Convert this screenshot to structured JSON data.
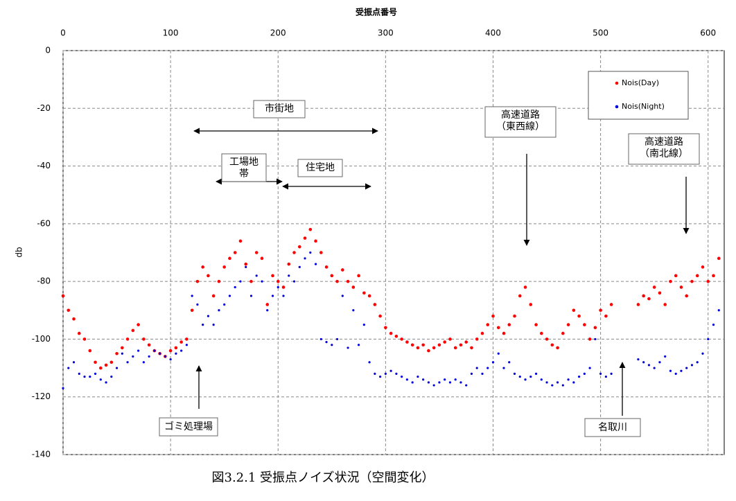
{
  "chart_data": {
    "type": "scatter",
    "x_label": "受振点番号",
    "y_label": "db",
    "caption": "図3.2.1 受振点ノイズ状況（空間変化）",
    "xlim": [
      0,
      615
    ],
    "ylim": [
      -140,
      0
    ],
    "xticks": [
      0,
      100,
      200,
      300,
      400,
      500,
      600
    ],
    "yticks": [
      0,
      -20,
      -40,
      -60,
      -80,
      -100,
      -120,
      -140
    ],
    "grid": true,
    "legend": "upper right",
    "series": [
      {
        "name": "Nois(Day)",
        "color": "#ff0000",
        "x": [
          0,
          5,
          10,
          15,
          20,
          25,
          30,
          35,
          40,
          45,
          50,
          55,
          60,
          65,
          70,
          75,
          80,
          85,
          90,
          95,
          100,
          105,
          110,
          115,
          120,
          125,
          130,
          135,
          140,
          145,
          150,
          155,
          160,
          165,
          170,
          175,
          180,
          185,
          190,
          195,
          200,
          205,
          210,
          215,
          220,
          225,
          230,
          235,
          240,
          245,
          250,
          255,
          260,
          265,
          270,
          275,
          280,
          285,
          290,
          295,
          300,
          305,
          310,
          315,
          320,
          325,
          330,
          335,
          340,
          345,
          350,
          355,
          360,
          365,
          370,
          375,
          380,
          385,
          390,
          395,
          400,
          405,
          410,
          415,
          420,
          425,
          430,
          435,
          440,
          445,
          450,
          455,
          460,
          465,
          470,
          475,
          480,
          485,
          490,
          495,
          500,
          505,
          510,
          535,
          540,
          545,
          550,
          555,
          560,
          565,
          570,
          575,
          580,
          585,
          590,
          595,
          600,
          605,
          610
        ],
        "values": [
          -85,
          -90,
          -93,
          -98,
          -100,
          -104,
          -108,
          -110,
          -109,
          -108,
          -105,
          -103,
          -100,
          -97,
          -95,
          -100,
          -102,
          -104,
          -105,
          -106,
          -104,
          -103,
          -101,
          -100,
          -90,
          -80,
          -75,
          -78,
          -85,
          -80,
          -75,
          -72,
          -70,
          -66,
          -74,
          -80,
          -70,
          -72,
          -88,
          -78,
          -80,
          -82,
          -74,
          -70,
          -68,
          -65,
          -62,
          -66,
          -70,
          -75,
          -78,
          -80,
          -76,
          -80,
          -82,
          -78,
          -84,
          -85,
          -88,
          -92,
          -96,
          -98,
          -99,
          -100,
          -101,
          -102,
          -103,
          -102,
          -104,
          -103,
          -102,
          -101,
          -100,
          -103,
          -102,
          -101,
          -103,
          -100,
          -98,
          -95,
          -92,
          -96,
          -98,
          -95,
          -92,
          -85,
          -82,
          -88,
          -95,
          -98,
          -100,
          -102,
          -103,
          -98,
          -95,
          -90,
          -92,
          -95,
          -100,
          -96,
          -90,
          -92,
          -88,
          -88,
          -85,
          -86,
          -82,
          -84,
          -88,
          -80,
          -78,
          -82,
          -85,
          -80,
          -78,
          -75,
          -80,
          -78,
          -72
        ]
      },
      {
        "name": "Nois(Night)",
        "color": "#0000dd",
        "x": [
          0,
          5,
          10,
          15,
          20,
          25,
          30,
          35,
          40,
          45,
          50,
          55,
          60,
          65,
          70,
          75,
          80,
          85,
          90,
          95,
          100,
          105,
          110,
          115,
          120,
          125,
          130,
          135,
          140,
          145,
          150,
          155,
          160,
          165,
          170,
          175,
          180,
          185,
          190,
          195,
          200,
          205,
          210,
          215,
          220,
          225,
          230,
          235,
          240,
          245,
          250,
          255,
          260,
          265,
          270,
          275,
          280,
          285,
          290,
          295,
          300,
          305,
          310,
          315,
          320,
          325,
          330,
          335,
          340,
          345,
          350,
          355,
          360,
          365,
          370,
          375,
          380,
          385,
          390,
          395,
          400,
          405,
          410,
          415,
          420,
          425,
          430,
          435,
          440,
          445,
          450,
          455,
          460,
          465,
          470,
          475,
          480,
          485,
          490,
          495,
          500,
          505,
          510,
          535,
          540,
          545,
          550,
          555,
          560,
          565,
          570,
          575,
          580,
          585,
          590,
          595,
          600,
          605,
          610
        ],
        "values": [
          -117,
          -110,
          -108,
          -112,
          -113,
          -113,
          -112,
          -114,
          -115,
          -113,
          -110,
          -105,
          -108,
          -106,
          -104,
          -108,
          -106,
          -104,
          -105,
          -106,
          -107,
          -105,
          -104,
          -102,
          -85,
          -88,
          -95,
          -92,
          -95,
          -90,
          -88,
          -85,
          -82,
          -80,
          -75,
          -85,
          -78,
          -80,
          -90,
          -85,
          -82,
          -85,
          -78,
          -80,
          -75,
          -72,
          -70,
          -74,
          -100,
          -101,
          -102,
          -100,
          -85,
          -103,
          -90,
          -102,
          -95,
          -108,
          -112,
          -113,
          -112,
          -111,
          -112,
          -113,
          -114,
          -115,
          -113,
          -114,
          -115,
          -116,
          -115,
          -114,
          -115,
          -114,
          -115,
          -116,
          -112,
          -110,
          -112,
          -110,
          -108,
          -105,
          -110,
          -108,
          -112,
          -113,
          -114,
          -113,
          -112,
          -114,
          -115,
          -116,
          -115,
          -116,
          -114,
          -115,
          -113,
          -112,
          -110,
          -100,
          -112,
          -113,
          -112,
          -107,
          -108,
          -109,
          -110,
          -108,
          -106,
          -111,
          -112,
          -111,
          -110,
          -109,
          -108,
          -105,
          -100,
          -95,
          -90
        ]
      }
    ],
    "annotations": [
      {
        "lines": [
          "市街地"
        ]
      },
      {
        "lines": [
          "工場地",
          "帯"
        ]
      },
      {
        "lines": [
          "住宅地"
        ]
      },
      {
        "lines": [
          "高速道路",
          "（東西線）"
        ]
      },
      {
        "lines": [
          "高速道路",
          "（南北線）"
        ]
      },
      {
        "lines": [
          "ゴミ処理場"
        ]
      },
      {
        "lines": [
          "名取川"
        ]
      }
    ]
  }
}
